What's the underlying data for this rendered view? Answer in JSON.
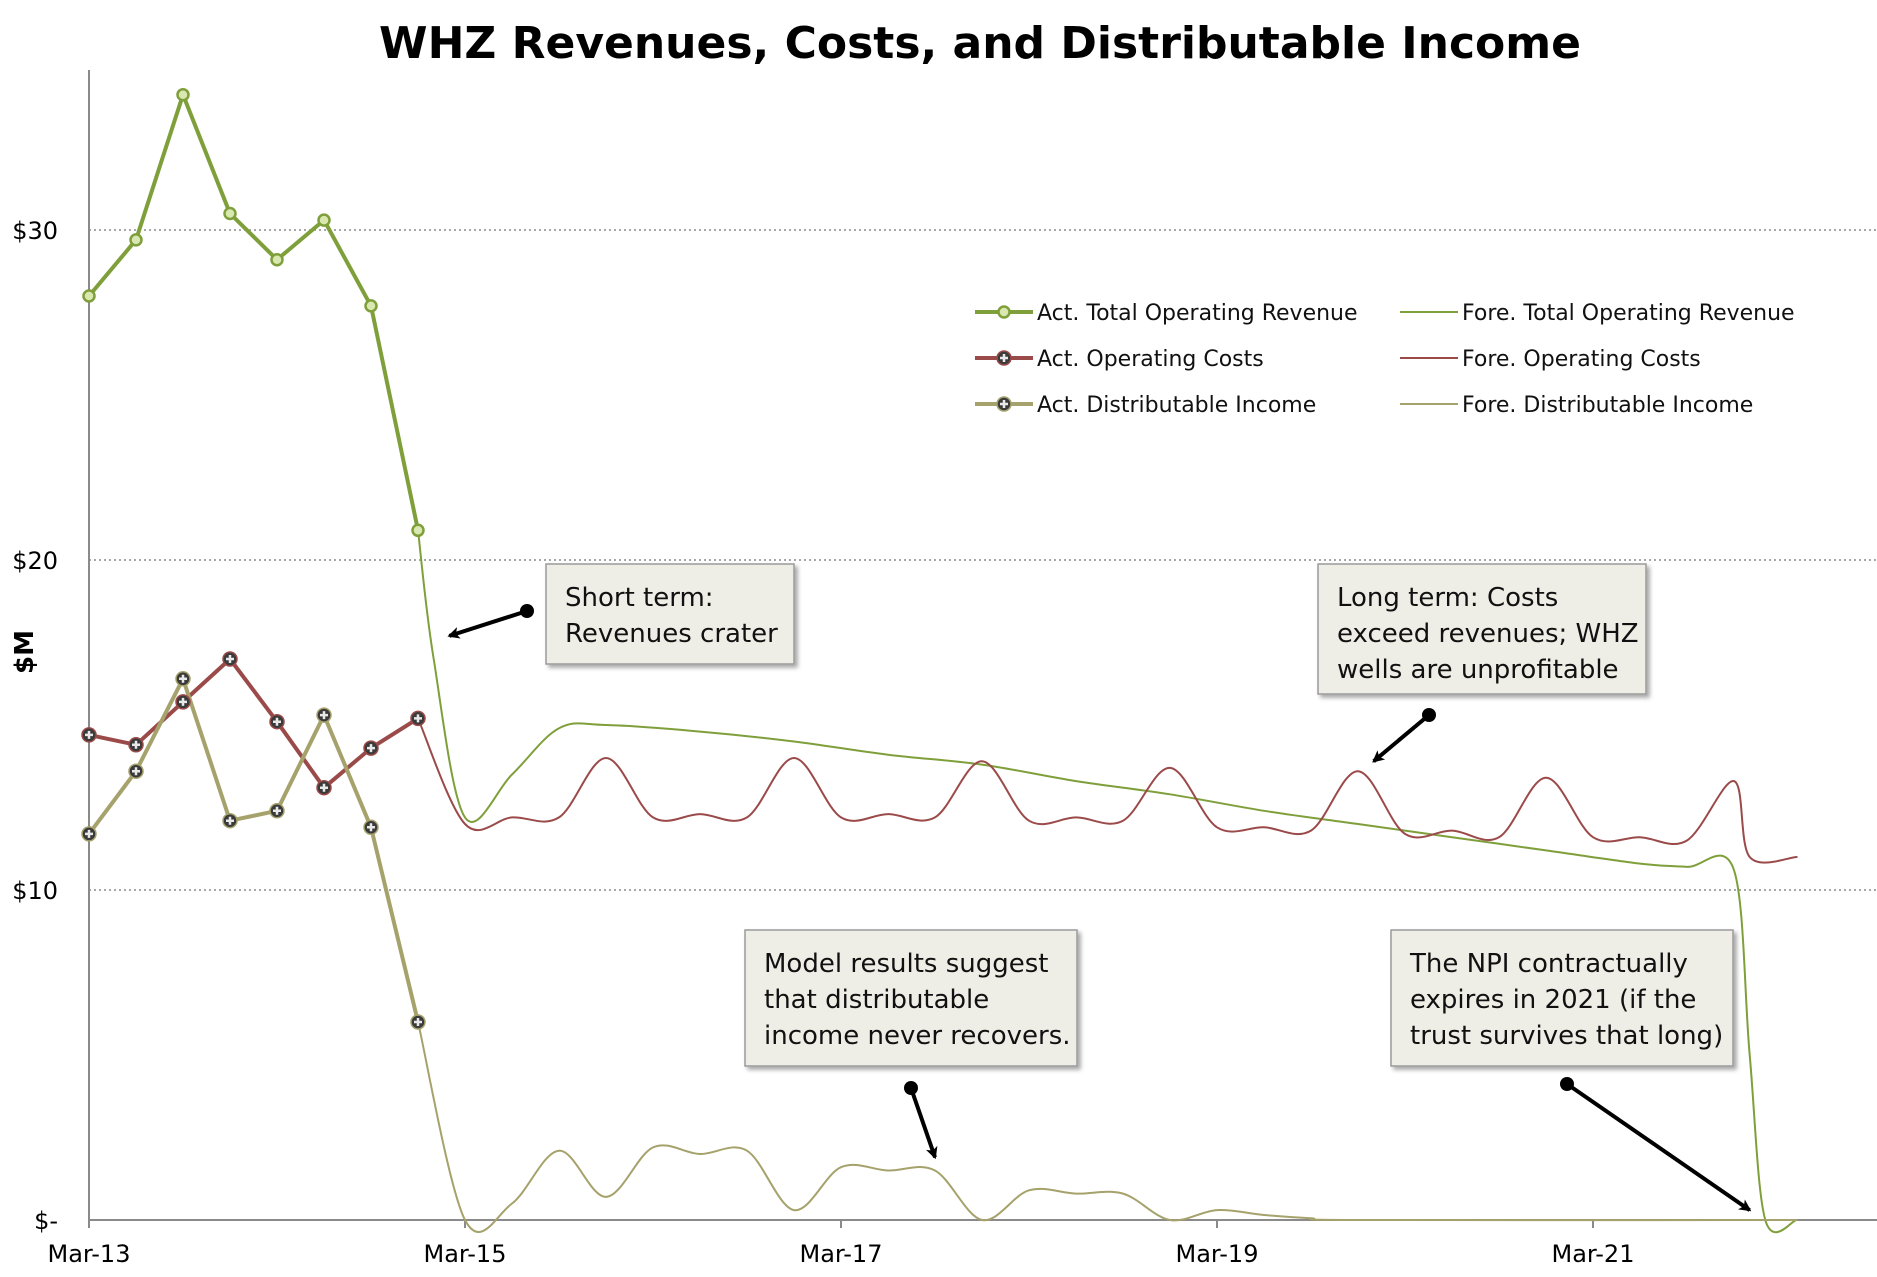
{
  "chart_data": {
    "type": "line",
    "title": "WHZ Revenues, Costs, and Distributable Income",
    "ylabel": "$M",
    "xlabel": "",
    "x_tick_labels": [
      "Mar-13",
      "Mar-15",
      "Mar-17",
      "Mar-19",
      "Mar-21"
    ],
    "y_tick_labels": [
      "$-",
      "$10",
      "$20",
      "$30"
    ],
    "y_ticks": [
      0,
      10,
      20,
      30
    ],
    "ylim": [
      0,
      35
    ],
    "xlim": [
      "2013-03",
      "2022-04"
    ],
    "grid": "horizontal-dotted",
    "legend_position": "upper-right",
    "series": [
      {
        "name": "Act. Total Operating Revenue",
        "color": "#7f9f3b",
        "style": "thick-with-markers",
        "marker": "circle",
        "x": [
          "2013-03",
          "2013-06",
          "2013-09",
          "2013-12",
          "2014-03",
          "2014-06",
          "2014-09",
          "2014-12"
        ],
        "y": [
          28.0,
          29.7,
          34.1,
          30.5,
          29.1,
          30.3,
          27.7,
          20.9
        ]
      },
      {
        "name": "Act. Operating Costs",
        "color": "#9b4a4a",
        "style": "thick-with-markers",
        "marker": "square",
        "x": [
          "2013-03",
          "2013-06",
          "2013-09",
          "2013-12",
          "2014-03",
          "2014-06",
          "2014-09",
          "2014-12"
        ],
        "y": [
          14.7,
          14.4,
          15.7,
          17.0,
          15.1,
          13.1,
          14.3,
          15.2
        ]
      },
      {
        "name": "Act. Distributable Income",
        "color": "#a6a26c",
        "style": "thick-with-markers",
        "marker": "square",
        "x": [
          "2013-03",
          "2013-06",
          "2013-09",
          "2013-12",
          "2014-03",
          "2014-06",
          "2014-09",
          "2014-12"
        ],
        "y": [
          11.7,
          13.6,
          16.4,
          12.1,
          12.4,
          15.3,
          11.9,
          6.0
        ]
      },
      {
        "name": "Fore. Total Operating Revenue",
        "color": "#7f9f3b",
        "style": "thin",
        "x": [
          "2014-12",
          "2015-01",
          "2015-03",
          "2015-06",
          "2015-09",
          "2015-12",
          "2016-06",
          "2016-12",
          "2017-06",
          "2017-12",
          "2018-06",
          "2018-12",
          "2019-06",
          "2019-12",
          "2020-06",
          "2020-12",
          "2021-06",
          "2021-09",
          "2021-12",
          "2022-01",
          "2022-02",
          "2022-04"
        ],
        "y": [
          20.9,
          17.0,
          12.2,
          13.5,
          14.9,
          15.0,
          14.8,
          14.5,
          14.1,
          13.8,
          13.3,
          12.9,
          12.4,
          12.0,
          11.6,
          11.2,
          10.8,
          10.7,
          10.6,
          5.0,
          0.0,
          0.0
        ]
      },
      {
        "name": "Fore. Operating Costs",
        "color": "#9b4a4a",
        "style": "thin",
        "x": [
          "2014-12",
          "2015-03",
          "2015-06",
          "2015-09",
          "2015-12",
          "2016-03",
          "2016-06",
          "2016-09",
          "2016-12",
          "2017-03",
          "2017-06",
          "2017-09",
          "2017-12",
          "2018-03",
          "2018-06",
          "2018-09",
          "2018-12",
          "2019-03",
          "2019-06",
          "2019-09",
          "2019-12",
          "2020-03",
          "2020-06",
          "2020-09",
          "2020-12",
          "2021-03",
          "2021-06",
          "2021-09",
          "2021-12",
          "2022-01",
          "2022-04"
        ],
        "y": [
          15.2,
          12.0,
          12.2,
          12.2,
          14.0,
          12.2,
          12.3,
          12.2,
          14.0,
          12.2,
          12.3,
          12.2,
          13.9,
          12.1,
          12.2,
          12.1,
          13.7,
          11.9,
          11.9,
          11.8,
          13.6,
          11.7,
          11.8,
          11.6,
          13.4,
          11.6,
          11.6,
          11.5,
          13.3,
          11.0,
          11.0
        ]
      },
      {
        "name": "Fore. Distributable Income",
        "color": "#a6a26c",
        "style": "thin",
        "x": [
          "2014-12",
          "2015-03",
          "2015-06",
          "2015-09",
          "2015-12",
          "2016-03",
          "2016-06",
          "2016-09",
          "2016-12",
          "2017-03",
          "2017-06",
          "2017-09",
          "2017-12",
          "2018-03",
          "2018-06",
          "2018-09",
          "2018-12",
          "2019-03",
          "2019-06",
          "2019-09",
          "2019-12",
          "2022-04"
        ],
        "y": [
          6.0,
          0.0,
          0.5,
          2.1,
          0.7,
          2.2,
          2.0,
          2.1,
          0.3,
          1.6,
          1.5,
          1.5,
          0.0,
          0.9,
          0.8,
          0.8,
          0.0,
          0.3,
          0.15,
          0.05,
          0.0,
          0.0
        ]
      }
    ],
    "annotations": [
      {
        "id": "short-term",
        "lines": [
          "Short term:",
          "Revenues crater"
        ],
        "arrow_to": {
          "x": "2015-02",
          "y": 17.7
        }
      },
      {
        "id": "long-term",
        "lines": [
          "Long term: Costs",
          "exceed revenues; WHZ",
          "wells are unprofitable"
        ],
        "arrow_to": {
          "x": "2020-01",
          "y": 13.9
        }
      },
      {
        "id": "model-results",
        "lines": [
          "Model results suggest",
          "that distributable",
          "income never recovers."
        ],
        "arrow_to": {
          "x": "2017-09",
          "y": 1.9
        }
      },
      {
        "id": "npi-expiry",
        "lines": [
          "The NPI contractually",
          "expires in 2021 (if the",
          "trust survives that long)"
        ],
        "arrow_to": {
          "x": "2022-01",
          "y": 0.3
        }
      }
    ]
  }
}
